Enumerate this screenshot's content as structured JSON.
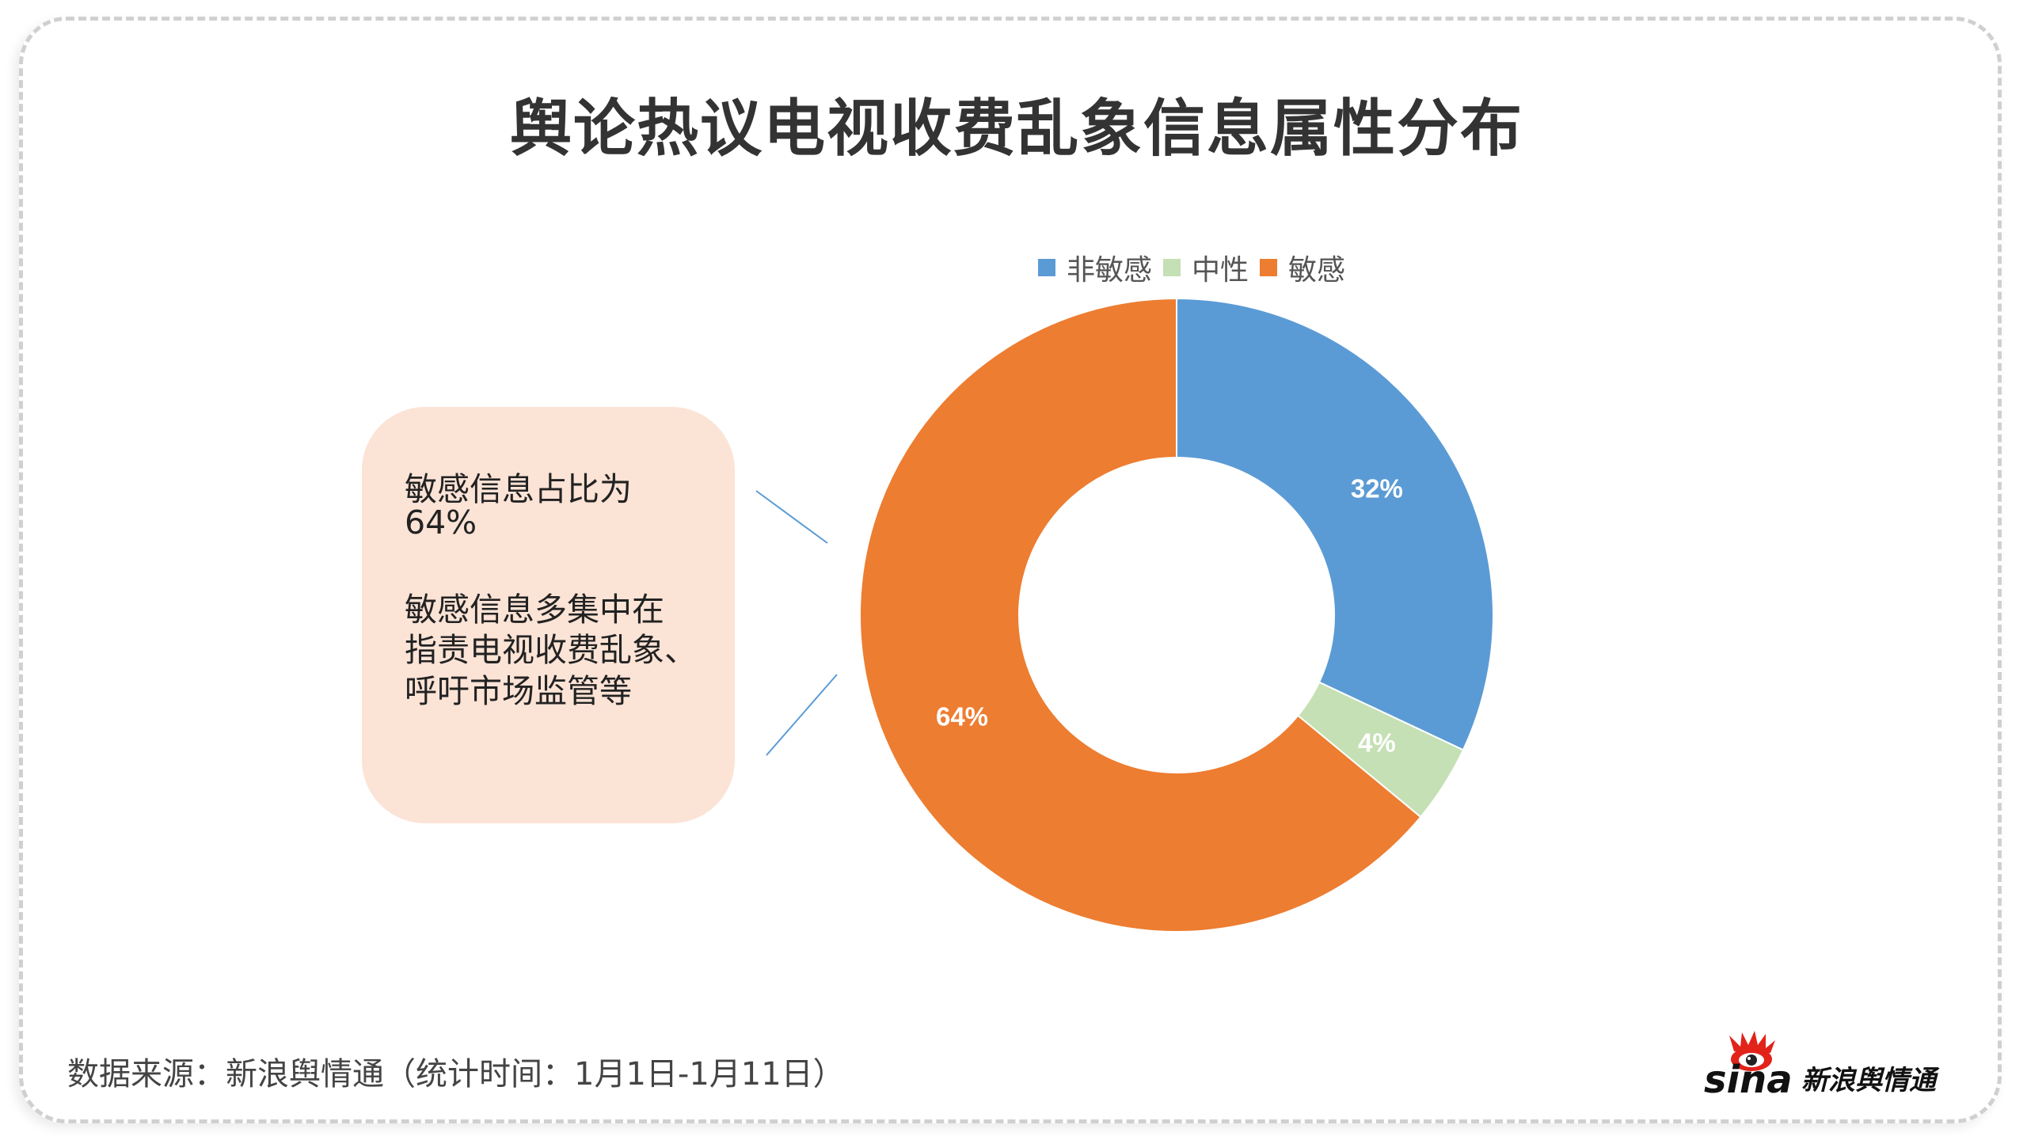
{
  "chart_data": {
    "type": "pie",
    "style": "donut",
    "title": "舆论热议电视收费乱象信息属性分布",
    "categories": [
      "非敏感",
      "中性",
      "敏感"
    ],
    "values": [
      32,
      4,
      64
    ],
    "labels": [
      "32%",
      "4%",
      "64%"
    ],
    "colors": [
      "#5b9bd5",
      "#c5e0b4",
      "#ed7d31"
    ],
    "legend_position": "top"
  },
  "callout": {
    "lines": [
      "敏感信息占比为",
      "64%",
      "",
      "敏感信息多集中在",
      "指责电视收费乱象、",
      "呼吁市场监管等"
    ]
  },
  "footer": {
    "source": "数据来源：新浪舆情通（统计时间：1月1日-1月11日）"
  },
  "logo": {
    "text": "sina新浪舆情通"
  }
}
